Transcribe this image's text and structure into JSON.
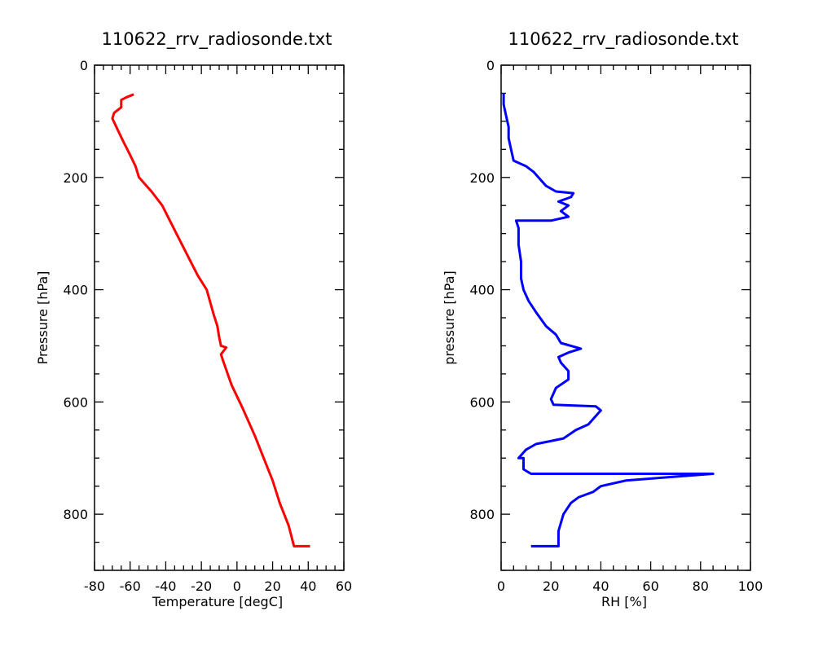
{
  "chart_data": [
    {
      "type": "line",
      "title": "110622_rrv_radiosonde.txt",
      "xlabel": "Temperature [degC]",
      "ylabel": "Pressure [hPa]",
      "xlim": [
        -80,
        60
      ],
      "ylim": [
        900,
        0
      ],
      "y_inverted": true,
      "xticks": [
        -80,
        -60,
        -40,
        -20,
        0,
        20,
        40,
        60
      ],
      "yticks": [
        0,
        200,
        400,
        600,
        800
      ],
      "grid": false,
      "series": [
        {
          "color": "#ff0000",
          "points": [
            [
              41,
              857
            ],
            [
              32,
              857
            ],
            [
              29,
              820
            ],
            [
              24,
              780
            ],
            [
              20,
              740
            ],
            [
              15,
              700
            ],
            [
              10,
              660
            ],
            [
              3,
              610
            ],
            [
              -3,
              570
            ],
            [
              -8,
              525
            ],
            [
              -9,
              515
            ],
            [
              -6,
              503
            ],
            [
              -9,
              500
            ],
            [
              -10,
              485
            ],
            [
              -11,
              465
            ],
            [
              -13,
              445
            ],
            [
              -17,
              400
            ],
            [
              -22,
              375
            ],
            [
              -26,
              350
            ],
            [
              -34,
              300
            ],
            [
              -38,
              275
            ],
            [
              -42,
              250
            ],
            [
              -48,
              225
            ],
            [
              -55,
              200
            ],
            [
              -57,
              180
            ],
            [
              -60,
              160
            ],
            [
              -64,
              135
            ],
            [
              -67,
              115
            ],
            [
              -70,
              95
            ],
            [
              -69,
              85
            ],
            [
              -65,
              75
            ],
            [
              -65,
              62
            ],
            [
              -62,
              57
            ],
            [
              -58,
              52
            ]
          ]
        }
      ]
    },
    {
      "type": "line",
      "title": "110622_rrv_radiosonde.txt",
      "xlabel": "RH [%]",
      "ylabel": "pressure [hPa]",
      "xlim": [
        0,
        100
      ],
      "ylim": [
        900,
        0
      ],
      "y_inverted": true,
      "xticks": [
        0,
        20,
        40,
        60,
        80,
        100
      ],
      "yticks": [
        0,
        200,
        400,
        600,
        800
      ],
      "grid": false,
      "series": [
        {
          "color": "#0000ff",
          "points": [
            [
              12,
              857
            ],
            [
              23,
              857
            ],
            [
              23,
              830
            ],
            [
              25,
              800
            ],
            [
              28,
              780
            ],
            [
              31,
              770
            ],
            [
              37,
              760
            ],
            [
              40,
              750
            ],
            [
              50,
              740
            ],
            [
              70,
              733
            ],
            [
              85,
              728
            ],
            [
              12,
              728
            ],
            [
              9,
              720
            ],
            [
              9,
              700
            ],
            [
              7,
              700
            ],
            [
              10,
              685
            ],
            [
              14,
              675
            ],
            [
              25,
              665
            ],
            [
              30,
              650
            ],
            [
              35,
              640
            ],
            [
              39,
              620
            ],
            [
              40,
              615
            ],
            [
              38,
              608
            ],
            [
              21,
              605
            ],
            [
              20,
              595
            ],
            [
              22,
              575
            ],
            [
              27,
              560
            ],
            [
              27,
              545
            ],
            [
              24,
              530
            ],
            [
              23,
              520
            ],
            [
              27,
              512
            ],
            [
              32,
              505
            ],
            [
              24,
              495
            ],
            [
              22,
              480
            ],
            [
              18,
              465
            ],
            [
              14,
              440
            ],
            [
              11,
              420
            ],
            [
              9,
              400
            ],
            [
              8,
              380
            ],
            [
              8,
              350
            ],
            [
              7,
              320
            ],
            [
              7,
              290
            ],
            [
              6,
              277
            ],
            [
              20,
              277
            ],
            [
              27,
              270
            ],
            [
              24,
              260
            ],
            [
              27,
              250
            ],
            [
              23,
              243
            ],
            [
              28,
              235
            ],
            [
              29,
              228
            ],
            [
              22,
              225
            ],
            [
              18,
              215
            ],
            [
              15,
              200
            ],
            [
              13,
              190
            ],
            [
              10,
              180
            ],
            [
              5,
              170
            ],
            [
              4,
              150
            ],
            [
              3,
              130
            ],
            [
              3,
              110
            ],
            [
              2,
              90
            ],
            [
              1,
              70
            ],
            [
              1,
              50
            ]
          ]
        }
      ]
    }
  ]
}
